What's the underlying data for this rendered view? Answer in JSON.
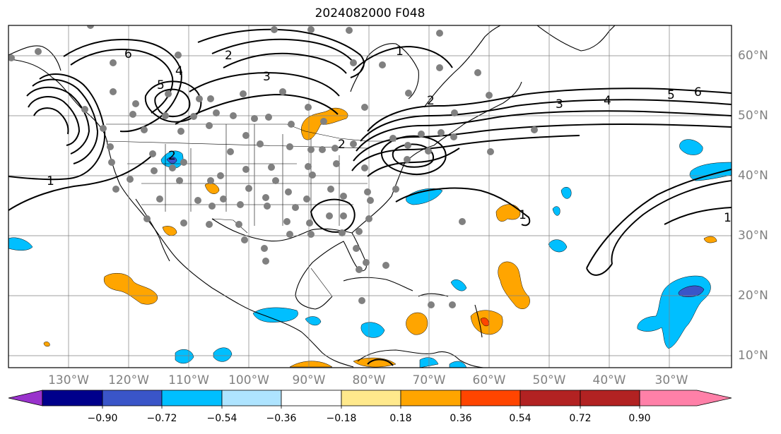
{
  "title": "2024082000 F048",
  "map": {
    "projection": "equirectangular",
    "extent": {
      "lon": [
        -138,
        -18
      ],
      "lat": [
        8,
        65
      ]
    },
    "lon_ticks": [
      "130°W",
      "120°W",
      "110°W",
      "100°W",
      "90°W",
      "80°W",
      "70°W",
      "60°W",
      "50°W",
      "40°W",
      "30°W"
    ],
    "lat_ticks": [
      "10°N",
      "20°N",
      "30°N",
      "40°N",
      "50°N",
      "60°N"
    ],
    "grid": true,
    "contour_labels": [
      "1",
      "2",
      "3",
      "4",
      "5",
      "6",
      "2",
      "1",
      "3",
      "4",
      "5",
      "6",
      "1",
      "2",
      "2",
      "1"
    ]
  },
  "colorbar": {
    "ticks": [
      "−0.90",
      "−0.72",
      "−0.54",
      "−0.36",
      "−0.18",
      "0.18",
      "0.36",
      "0.54",
      "0.72",
      "0.90"
    ],
    "colors": [
      "#9932cc",
      "#00008b",
      "#3a55c8",
      "#00bfff",
      "#aee4ff",
      "#ffffff",
      "#ffe98c",
      "#ffa500",
      "#ff4500",
      "#b22222",
      "#ff80a8"
    ]
  },
  "legend_colors": {
    "negative": "#00bfff",
    "positive": "#ffa500"
  }
}
